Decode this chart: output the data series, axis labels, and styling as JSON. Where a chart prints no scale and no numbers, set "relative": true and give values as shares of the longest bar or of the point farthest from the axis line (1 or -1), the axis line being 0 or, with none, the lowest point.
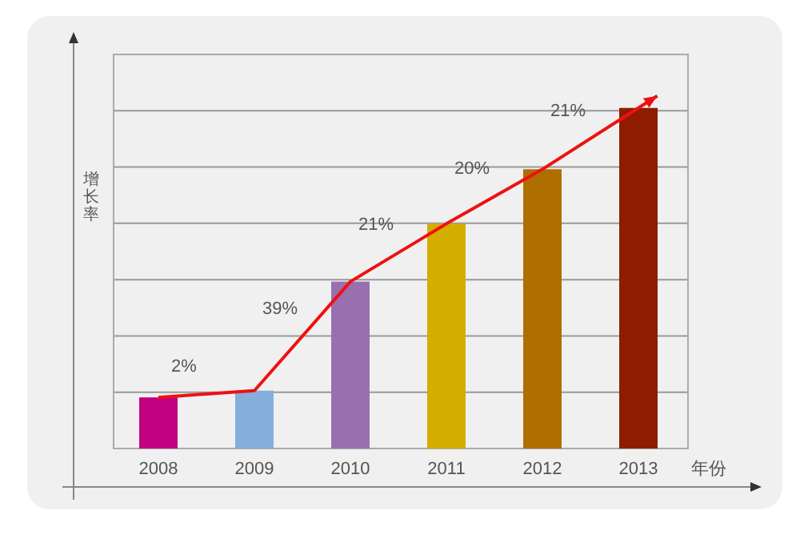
{
  "chart_data": {
    "type": "bar",
    "relative": true,
    "ylabel": "增长率",
    "xlabel": "年份",
    "categories": [
      "2008",
      "2009",
      "2010",
      "2011",
      "2012",
      "2013"
    ],
    "series": [
      {
        "values": [
          0.15,
          0.17,
          0.49,
          0.66,
          0.82,
          1
        ],
        "colors": [
          "#c0007f",
          "#85aedd",
          "#9a6faf",
          "#d4ad00",
          "#b06e00",
          "#8f1c00"
        ]
      },
      {
        "type": "line",
        "color": "#ee1111",
        "values": [
          0.15,
          0.17,
          0.49,
          0.66,
          0.82,
          1
        ]
      }
    ],
    "annotations": [
      "2%",
      "39%",
      "21%",
      "20%",
      "21%"
    ],
    "grid": "y"
  }
}
